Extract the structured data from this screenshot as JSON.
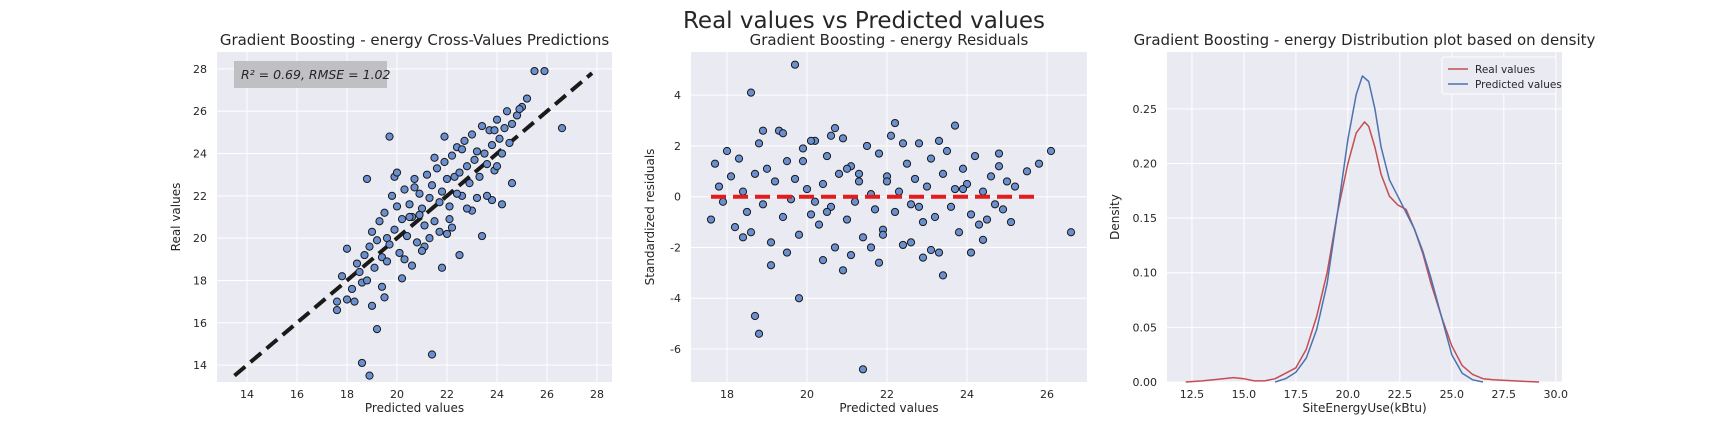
{
  "suptitle": "Real values vs Predicted values",
  "colors": {
    "axes_bg": "#eaeaf2",
    "grid": "#ffffff",
    "points": "#6a8fd1",
    "point_edge": "#1a1a1a",
    "diag_line": "#1a1a1a",
    "zero_line": "#e21b1b",
    "real_curve": "#c44e52",
    "pred_curve": "#4c72b0",
    "anno_box": "#bdbdc1"
  },
  "chart_data": [
    {
      "type": "scatter",
      "title": "Gradient Boosting - energy Cross-Values Predictions",
      "xlabel": "Predicted values",
      "ylabel": "Real values",
      "xlim": [
        12.8,
        28.6
      ],
      "ylim": [
        13.2,
        28.8
      ],
      "xticks": [
        14,
        16,
        18,
        20,
        22,
        24,
        26,
        28
      ],
      "yticks": [
        14,
        16,
        18,
        20,
        22,
        24,
        26,
        28
      ],
      "annotation": "R² = 0.69, RMSE = 1.02",
      "reference_line": {
        "x": [
          13.5,
          27.8
        ],
        "y": [
          13.5,
          27.8
        ],
        "style": "dashed"
      },
      "points": {
        "x": [
          17.6,
          17.6,
          17.8,
          18.0,
          18.0,
          18.2,
          18.4,
          18.5,
          18.6,
          18.7,
          18.8,
          18.9,
          19.0,
          19.1,
          19.2,
          19.3,
          19.4,
          19.5,
          19.6,
          19.7,
          19.8,
          19.9,
          20.0,
          20.1,
          20.2,
          20.3,
          20.4,
          20.5,
          20.6,
          20.7,
          20.8,
          20.9,
          21.0,
          21.1,
          21.2,
          21.3,
          21.4,
          21.5,
          21.6,
          21.7,
          21.8,
          21.9,
          22.0,
          22.1,
          22.2,
          22.3,
          22.4,
          22.5,
          22.6,
          22.7,
          22.8,
          22.9,
          23.0,
          23.1,
          23.2,
          23.3,
          23.4,
          23.5,
          23.6,
          23.7,
          23.8,
          23.9,
          24.0,
          24.1,
          24.2,
          24.3,
          24.4,
          24.5,
          24.6,
          24.8,
          25.0,
          25.2,
          25.5,
          18.8,
          19.7,
          21.4,
          18.9,
          18.6,
          19.2,
          20.2,
          21.8,
          22.5,
          23.4,
          19.5,
          20.6,
          21.1,
          22.2,
          23.0,
          23.8,
          24.6,
          20.9,
          21.7,
          19.9,
          22.8,
          25.9,
          26.6,
          21.3,
          20.3,
          19.0,
          24.2,
          22.0,
          23.6,
          21.5,
          20.7,
          18.3,
          19.4,
          22.6,
          24.0,
          23.2,
          20.0,
          21.9,
          22.4,
          20.5,
          19.6,
          21.0,
          23.9,
          24.9,
          22.1
        ],
        "y": [
          16.6,
          17.0,
          18.2,
          17.1,
          19.5,
          17.6,
          18.8,
          18.4,
          17.9,
          19.2,
          18.0,
          19.6,
          20.3,
          18.6,
          19.9,
          20.8,
          19.1,
          21.2,
          20.0,
          19.7,
          22.0,
          20.4,
          21.5,
          19.3,
          20.9,
          22.3,
          20.1,
          21.6,
          21.0,
          22.8,
          19.8,
          22.1,
          21.4,
          20.6,
          23.0,
          21.9,
          22.5,
          20.8,
          23.3,
          21.7,
          22.2,
          23.6,
          22.8,
          21.5,
          23.9,
          22.9,
          24.3,
          23.1,
          22.0,
          24.6,
          23.4,
          22.6,
          24.9,
          23.7,
          24.1,
          22.9,
          25.3,
          24.0,
          23.5,
          25.1,
          24.4,
          23.2,
          25.6,
          24.7,
          24.0,
          25.2,
          26.0,
          24.5,
          25.4,
          25.8,
          26.2,
          26.6,
          27.9,
          22.8,
          24.8,
          14.5,
          13.5,
          14.1,
          15.7,
          18.1,
          18.6,
          19.2,
          20.1,
          17.2,
          18.7,
          19.6,
          20.5,
          21.3,
          21.8,
          22.6,
          21.1,
          20.3,
          22.9,
          21.4,
          27.9,
          25.2,
          20.0,
          19.0,
          16.8,
          21.6,
          20.2,
          22.0,
          23.8,
          22.4,
          17.0,
          17.7,
          24.2,
          23.4,
          21.9,
          23.1,
          24.8,
          22.1,
          21.0,
          18.9,
          19.4,
          25.1,
          26.1,
          20.9
        ]
      }
    },
    {
      "type": "scatter",
      "title": "Gradient Boosting - energy Residuals",
      "xlabel": "Predicted values",
      "ylabel": "Standardized residuals",
      "xlim": [
        17.1,
        27.0
      ],
      "ylim": [
        -7.3,
        5.7
      ],
      "xticks": [
        18,
        20,
        22,
        24,
        26
      ],
      "yticks": [
        -6,
        -4,
        -2,
        0,
        2,
        4
      ],
      "reference_line": {
        "x": [
          17.6,
          25.8
        ],
        "y": [
          0,
          0
        ],
        "style": "dashed"
      },
      "points": {
        "x": [
          17.6,
          17.7,
          17.8,
          17.9,
          18.0,
          18.1,
          18.2,
          18.3,
          18.4,
          18.5,
          18.6,
          18.7,
          18.8,
          18.9,
          19.0,
          19.1,
          19.2,
          19.3,
          19.4,
          19.5,
          19.6,
          19.7,
          19.8,
          19.9,
          20.0,
          20.1,
          20.2,
          20.3,
          20.4,
          20.5,
          20.6,
          20.7,
          20.8,
          20.9,
          21.0,
          21.1,
          21.2,
          21.3,
          21.4,
          21.5,
          21.6,
          21.7,
          21.8,
          21.9,
          22.0,
          22.1,
          22.2,
          22.3,
          22.4,
          22.5,
          22.6,
          22.7,
          22.8,
          22.9,
          23.0,
          23.1,
          23.2,
          23.3,
          23.4,
          23.5,
          23.6,
          23.7,
          23.8,
          23.9,
          24.0,
          24.1,
          24.2,
          24.3,
          24.4,
          24.5,
          24.6,
          24.7,
          24.8,
          24.9,
          25.0,
          25.2,
          25.5,
          25.8,
          26.1,
          26.6,
          18.6,
          19.7,
          18.7,
          18.8,
          19.8,
          21.4,
          23.4,
          22.9,
          20.9,
          21.8,
          19.1,
          24.1,
          20.4,
          22.6,
          23.1,
          20.7,
          19.4,
          22.2,
          21.1,
          24.4,
          20.1,
          18.9,
          23.7,
          21.6,
          20.6,
          22.4,
          19.5,
          24.8,
          21.9,
          23.3,
          20.2,
          22.0,
          18.4,
          19.9,
          25.1,
          21.3,
          22.8,
          23.9,
          20.5,
          21.0
        ],
        "y": [
          -0.9,
          1.3,
          0.4,
          -0.2,
          1.8,
          0.8,
          -1.2,
          1.5,
          0.2,
          -0.6,
          -1.4,
          0.9,
          2.1,
          -0.3,
          1.1,
          -1.8,
          0.6,
          2.6,
          -0.8,
          1.4,
          -0.1,
          0.7,
          -1.5,
          1.9,
          0.3,
          -0.7,
          2.2,
          -1.1,
          0.5,
          1.6,
          -0.4,
          -2.0,
          0.9,
          2.3,
          -0.9,
          1.2,
          -0.2,
          0.6,
          -1.6,
          2.0,
          0.1,
          -0.5,
          1.7,
          -1.3,
          0.8,
          2.4,
          -0.6,
          0.2,
          -1.9,
          1.3,
          -0.3,
          0.7,
          2.1,
          -1.0,
          0.4,
          1.5,
          -0.8,
          -2.2,
          0.9,
          1.8,
          -0.4,
          0.3,
          -1.4,
          1.1,
          0.5,
          -0.7,
          1.6,
          -1.1,
          0.2,
          -0.9,
          0.8,
          -0.3,
          1.2,
          -0.5,
          0.6,
          0.4,
          1.0,
          1.3,
          1.8,
          -1.4,
          4.1,
          5.2,
          -4.7,
          -5.4,
          -4.0,
          -6.8,
          -3.1,
          -2.4,
          -2.9,
          -2.6,
          -2.7,
          -2.2,
          -2.5,
          -1.8,
          -2.1,
          2.7,
          2.5,
          2.9,
          -2.3,
          -1.7,
          2.2,
          2.6,
          2.8,
          -2.0,
          2.4,
          2.1,
          -2.2,
          1.7,
          -1.5,
          2.2,
          -0.2,
          0.6,
          -1.6,
          1.4,
          -1.0,
          0.9,
          -0.4,
          0.3,
          -0.6,
          1.1
        ]
      }
    },
    {
      "type": "line",
      "title": "Gradient Boosting - energy Distribution plot based on density",
      "xlabel": "SiteEnergyUse(kBtu)",
      "ylabel": "Density",
      "xlim": [
        11.3,
        30.3
      ],
      "ylim": [
        0,
        0.302
      ],
      "xticks": [
        12.5,
        15.0,
        17.5,
        20.0,
        22.5,
        25.0,
        27.5,
        30.0
      ],
      "xticklabels": [
        "12.5",
        "15.0",
        "17.5",
        "20.0",
        "22.5",
        "25.0",
        "27.5",
        "30.0"
      ],
      "yticks": [
        0.0,
        0.05,
        0.1,
        0.15,
        0.2,
        0.25
      ],
      "yticklabels": [
        "0.00",
        "0.05",
        "0.10",
        "0.15",
        "0.20",
        "0.25"
      ],
      "legend": {
        "position": "top-right"
      },
      "series": [
        {
          "name": "Real values",
          "x": [
            12.2,
            13.0,
            14.0,
            14.5,
            15.0,
            15.5,
            16.0,
            16.5,
            17.0,
            17.5,
            18.0,
            18.5,
            19.0,
            19.5,
            20.0,
            20.4,
            20.8,
            21.0,
            21.3,
            21.6,
            22.0,
            22.4,
            22.8,
            23.2,
            23.6,
            24.0,
            24.5,
            25.0,
            25.5,
            26.0,
            26.5,
            27.0,
            28.0,
            29.2
          ],
          "y": [
            0.0,
            0.001,
            0.003,
            0.004,
            0.003,
            0.001,
            0.001,
            0.003,
            0.008,
            0.013,
            0.03,
            0.06,
            0.1,
            0.155,
            0.2,
            0.228,
            0.238,
            0.234,
            0.215,
            0.19,
            0.17,
            0.162,
            0.158,
            0.14,
            0.118,
            0.09,
            0.06,
            0.033,
            0.015,
            0.007,
            0.003,
            0.002,
            0.001,
            0.0
          ]
        },
        {
          "name": "Predicted values",
          "x": [
            16.5,
            17.0,
            17.5,
            18.0,
            18.5,
            19.0,
            19.5,
            20.0,
            20.4,
            20.7,
            21.0,
            21.3,
            21.6,
            22.0,
            22.4,
            22.8,
            23.2,
            23.6,
            24.0,
            24.5,
            25.0,
            25.5,
            26.0,
            26.5
          ],
          "y": [
            0.0,
            0.003,
            0.009,
            0.022,
            0.048,
            0.09,
            0.155,
            0.222,
            0.263,
            0.28,
            0.275,
            0.25,
            0.215,
            0.185,
            0.17,
            0.155,
            0.14,
            0.12,
            0.095,
            0.06,
            0.025,
            0.008,
            0.002,
            0.0
          ]
        }
      ]
    }
  ]
}
